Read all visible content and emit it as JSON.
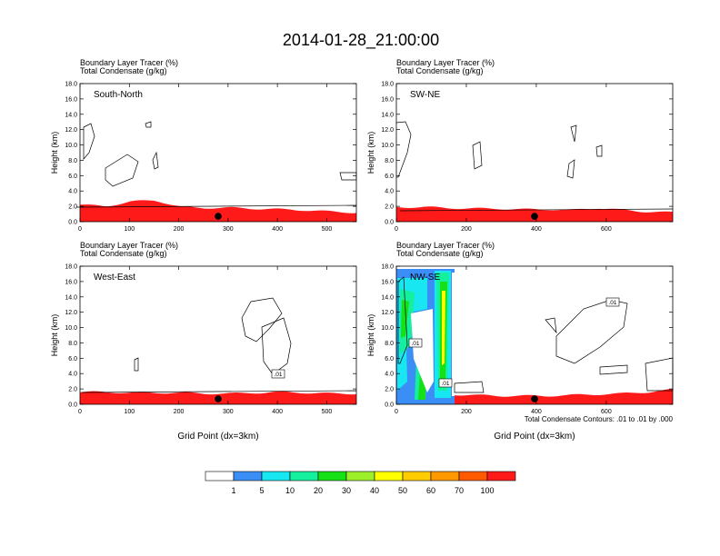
{
  "figure": {
    "title": "2014-01-28_21:00:00",
    "footnote": "Total Condensate Contours: .01 to .01 by .000"
  },
  "chart_data": [
    {
      "type": "heatmap",
      "title": "Boundary Layer Tracer    (%)",
      "subtitle": "Total Condensate    (g/kg)",
      "panel_label": "South-North",
      "xlabel": "",
      "ylabel": "Height (km)",
      "xlim": [
        0,
        560
      ],
      "ylim": [
        0,
        18
      ],
      "xticks": [
        "0",
        "100",
        "200",
        "300",
        "400",
        "500"
      ],
      "yticks": [
        "0.0",
        "2.0",
        "4.0",
        "6.0",
        "8.0",
        "10.0",
        "12.0",
        "14.0",
        "16.0",
        "18.0"
      ],
      "point_x": 280,
      "tracer_top_km": [
        2.2,
        2.0,
        2.6,
        2.8,
        1.9,
        1.8,
        1.8,
        1.7,
        1.6,
        1.5,
        1.3,
        1.2
      ]
    },
    {
      "type": "heatmap",
      "title": "Boundary Layer Tracer    (%)",
      "subtitle": "Total Condensate    (g/kg)",
      "panel_label": "SW-NE",
      "xlabel": "",
      "ylabel": "Height (km)",
      "xlim": [
        0,
        790
      ],
      "ylim": [
        0,
        18
      ],
      "xticks": [
        "0",
        "200",
        "400",
        "600"
      ],
      "yticks": [
        "0.0",
        "2.0",
        "4.0",
        "6.0",
        "8.0",
        "10.0",
        "12.0",
        "14.0",
        "16.0",
        "18.0"
      ],
      "point_x": 395,
      "tracer_top_km": [
        1.9,
        1.9,
        1.8,
        1.7,
        1.7,
        1.6,
        1.6,
        1.5,
        1.8,
        1.5,
        1.3,
        1.2
      ]
    },
    {
      "type": "heatmap",
      "title": "Boundary Layer Tracer    (%)",
      "subtitle": "Total Condensate    (g/kg)",
      "panel_label": "West-East",
      "xlabel": "Grid Point (dx=3km)",
      "ylabel": "Height (km)",
      "xlim": [
        0,
        560
      ],
      "ylim": [
        0,
        18
      ],
      "xticks": [
        "0",
        "100",
        "200",
        "300",
        "400",
        "500"
      ],
      "yticks": [
        "0.0",
        "2.0",
        "4.0",
        "6.0",
        "8.0",
        "10.0",
        "12.0",
        "14.0",
        "16.0",
        "18.0"
      ],
      "point_x": 280,
      "contour_labels": [
        ".01"
      ],
      "tracer_top_km": [
        1.6,
        1.6,
        1.5,
        1.5,
        1.5,
        1.4,
        1.4,
        1.5,
        1.6,
        1.5,
        1.4,
        1.4
      ]
    },
    {
      "type": "heatmap",
      "title": "Boundary Layer Tracer    (%)",
      "subtitle": "Total Condensate    (g/kg)",
      "panel_label": "NW-SE",
      "xlabel": "Grid Point (dx=3km)",
      "ylabel": "Height (km)",
      "xlim": [
        0,
        790
      ],
      "ylim": [
        0,
        18
      ],
      "xticks": [
        "0",
        "200",
        "400",
        "600"
      ],
      "yticks": [
        "0.0",
        "2.0",
        "4.0",
        "6.0",
        "8.0",
        "10.0",
        "12.0",
        "14.0",
        "16.0",
        "18.0"
      ],
      "point_x": 395,
      "contour_labels": [
        ".01",
        ".01",
        ".01"
      ],
      "tracer_top_km": [
        1.6,
        1.4,
        1.3,
        1.2,
        1.1,
        1.1,
        1.1,
        1.2,
        1.3,
        1.4,
        1.6,
        1.9
      ]
    }
  ],
  "colorbar": {
    "labels": [
      "1",
      "5",
      "10",
      "20",
      "30",
      "40",
      "50",
      "60",
      "70",
      "100"
    ],
    "colors": [
      "#ffffff",
      "#3a8ef6",
      "#18e6f0",
      "#14f09e",
      "#16e016",
      "#9cf02a",
      "#ffff00",
      "#ffcc00",
      "#ff9900",
      "#ff5a00",
      "#ff1a1a"
    ]
  }
}
